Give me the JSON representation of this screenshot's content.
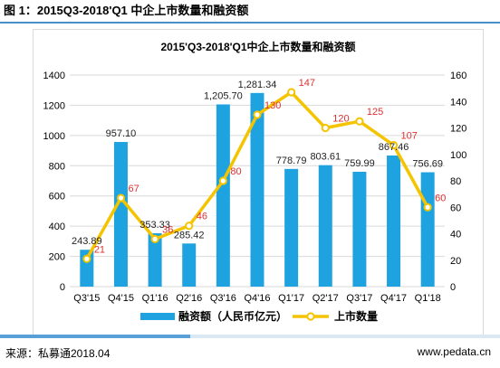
{
  "figure_title": "图 1：2015Q3-2018'Q1 中企上市数量和融资额",
  "source_text": "来源：私募通2018.04",
  "site_text": "www.pedata.cn",
  "colors": {
    "bar": "#1fa3e0",
    "line": "#f5c400",
    "line_marker_fill": "#ffffff",
    "count_label": "#e03030",
    "grid": "#d9d9d9"
  },
  "chart_data": {
    "type": "bar",
    "title": "2015'Q3-2018'Q1中企上市数量和融资额",
    "categories": [
      "Q3'15",
      "Q4'15",
      "Q1'16",
      "Q2'16",
      "Q3'16",
      "Q4'16",
      "Q1'17",
      "Q2'17",
      "Q3'17",
      "Q4'17",
      "Q1'18"
    ],
    "y_left_ticks": [
      "0",
      "200",
      "400",
      "600",
      "800",
      "1000",
      "1200",
      "1400"
    ],
    "y_right_ticks": [
      "0",
      "20",
      "40",
      "60",
      "80",
      "100",
      "120",
      "140",
      "160"
    ],
    "ylim_left": [
      0,
      1400
    ],
    "ylim_right": [
      0,
      160
    ],
    "grid": true,
    "legend_position": "bottom",
    "series": [
      {
        "name": "融资额（人民币亿元）",
        "type": "bar",
        "axis": "left",
        "values": [
          243.89,
          957.1,
          353.33,
          285.42,
          1205.7,
          1281.34,
          778.79,
          803.61,
          759.99,
          867.46,
          756.69
        ],
        "labels": [
          "243.89",
          "957.10",
          "353.33",
          "285.42",
          "1,205.70",
          "1,281.34",
          "778.79",
          "803.61",
          "759.99",
          "867.46",
          "756.69"
        ]
      },
      {
        "name": "上市数量",
        "type": "line",
        "axis": "right",
        "values": [
          21,
          67,
          36,
          46,
          80,
          130,
          147,
          120,
          125,
          107,
          60
        ],
        "labels": [
          "21",
          "67",
          "36",
          "46",
          "80",
          "130",
          "147",
          "120",
          "125",
          "107",
          "60"
        ]
      }
    ]
  }
}
